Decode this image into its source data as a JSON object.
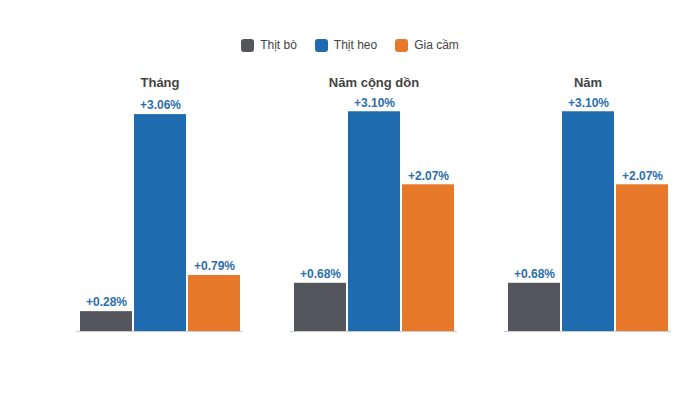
{
  "chart_data": {
    "type": "bar",
    "categories": [
      "Tháng",
      "Năm cộng dồn",
      "Năm"
    ],
    "series": [
      {
        "name": "Thịt bò",
        "color": "#55565b",
        "values": [
          0.28,
          0.68,
          0.68
        ],
        "value_labels": [
          "+0.28%",
          "+0.68%",
          "+0.68%"
        ]
      },
      {
        "name": "Thịt heo",
        "color": "#1f6bb0",
        "values": [
          3.06,
          3.1,
          3.1
        ],
        "value_labels": [
          "+3.06%",
          "+3.10%",
          "+3.10%"
        ]
      },
      {
        "name": "Gia cầm",
        "color": "#e8792a",
        "values": [
          0.79,
          2.07,
          2.07
        ],
        "value_labels": [
          "+0.79%",
          "+2.07%",
          "+2.07%"
        ]
      }
    ],
    "ylim": [
      0,
      3.4
    ],
    "grid": false,
    "legend": "top",
    "data_labels": true,
    "tick_labels": "x"
  }
}
